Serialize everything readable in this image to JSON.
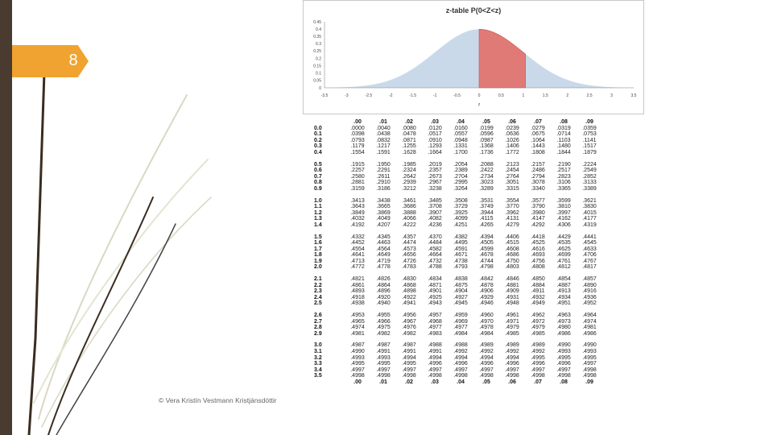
{
  "slide": {
    "number": "8"
  },
  "footer": {
    "text": "© Vera Kristín Vestmann Kristjánsdóttir"
  },
  "chart_data": {
    "type": "area",
    "title": "z-table P(0<Z<z)",
    "xlabel": "z",
    "ylabel": "",
    "xlim": [
      -3.5,
      3.5
    ],
    "ylim": [
      0,
      0.45
    ],
    "x_ticks": [
      "-3.5",
      "-3",
      "-2.5",
      "-2",
      "-1.5",
      "-1",
      "-0.5",
      "0",
      "0.5",
      "1",
      "1.5",
      "2",
      "2.5",
      "3",
      "3.5"
    ],
    "y_ticks": [
      "0",
      "0.05",
      "0.1",
      "0.15",
      "0.2",
      "0.25",
      "0.3",
      "0.35",
      "0.4",
      "0.45"
    ],
    "series": [
      {
        "function": "standard normal density",
        "mean": 0,
        "sd": 1,
        "color": "#c9d9ea",
        "range": [
          -3.5,
          3.5
        ]
      },
      {
        "function": "standard normal density",
        "mean": 0,
        "sd": 1,
        "color": "#e07a76",
        "range": [
          0,
          1.05
        ]
      }
    ]
  },
  "z_table": {
    "columns": [
      ".00",
      ".01",
      ".02",
      ".03",
      ".04",
      ".05",
      ".06",
      ".07",
      ".08",
      ".09"
    ],
    "footer_columns": [
      ".00",
      ".01",
      ".02",
      ".03",
      ".04",
      ".05",
      ".06",
      ".07",
      ".08",
      ".09"
    ],
    "groups": [
      {
        "rows": [
          {
            "z": "0.0",
            "values": [
              ".0000",
              ".0040",
              ".0080",
              ".0120",
              ".0160",
              ".0199",
              ".0239",
              ".0279",
              ".0319",
              ".0359"
            ]
          },
          {
            "z": "0.1",
            "values": [
              ".0398",
              ".0438",
              ".0478",
              ".0517",
              ".0557",
              ".0596",
              ".0636",
              ".0675",
              ".0714",
              ".0753"
            ]
          },
          {
            "z": "0.2",
            "values": [
              ".0793",
              ".0832",
              ".0871",
              ".0910",
              ".0948",
              ".0987",
              ".1026",
              ".1064",
              ".1103",
              ".1141"
            ]
          },
          {
            "z": "0.3",
            "values": [
              ".1179",
              ".1217",
              ".1255",
              ".1293",
              ".1331",
              ".1368",
              ".1406",
              ".1443",
              ".1480",
              ".1517"
            ]
          },
          {
            "z": "0.4",
            "values": [
              ".1554",
              ".1591",
              ".1628",
              ".1664",
              ".1700",
              ".1736",
              ".1772",
              ".1808",
              ".1844",
              ".1879"
            ]
          }
        ]
      },
      {
        "rows": [
          {
            "z": "0.5",
            "values": [
              ".1915",
              ".1950",
              ".1985",
              ".2019",
              ".2054",
              ".2088",
              ".2123",
              ".2157",
              ".2190",
              ".2224"
            ]
          },
          {
            "z": "0.6",
            "values": [
              ".2257",
              ".2291",
              ".2324",
              ".2357",
              ".2389",
              ".2422",
              ".2454",
              ".2486",
              ".2517",
              ".2549"
            ]
          },
          {
            "z": "0.7",
            "values": [
              ".2580",
              ".2611",
              ".2642",
              ".2673",
              ".2704",
              ".2734",
              ".2764",
              ".2794",
              ".2823",
              ".2852"
            ]
          },
          {
            "z": "0.8",
            "values": [
              ".2881",
              ".2910",
              ".2939",
              ".2967",
              ".2995",
              ".3023",
              ".3051",
              ".3078",
              ".3106",
              ".3133"
            ]
          },
          {
            "z": "0.9",
            "values": [
              ".3159",
              ".3186",
              ".3212",
              ".3238",
              ".3264",
              ".3289",
              ".3315",
              ".3340",
              ".3365",
              ".3389"
            ]
          }
        ]
      },
      {
        "rows": [
          {
            "z": "1.0",
            "values": [
              ".3413",
              ".3438",
              ".3461",
              ".3485",
              ".3508",
              ".3531",
              ".3554",
              ".3577",
              ".3599",
              ".3621"
            ]
          },
          {
            "z": "1.1",
            "values": [
              ".3643",
              ".3665",
              ".3686",
              ".3708",
              ".3729",
              ".3749",
              ".3770",
              ".3790",
              ".3810",
              ".3830"
            ]
          },
          {
            "z": "1.2",
            "values": [
              ".3849",
              ".3869",
              ".3888",
              ".3907",
              ".3925",
              ".3944",
              ".3962",
              ".3980",
              ".3997",
              ".4015"
            ]
          },
          {
            "z": "1.3",
            "values": [
              ".4032",
              ".4049",
              ".4066",
              ".4082",
              ".4099",
              ".4115",
              ".4131",
              ".4147",
              ".4162",
              ".4177"
            ]
          },
          {
            "z": "1.4",
            "values": [
              ".4192",
              ".4207",
              ".4222",
              ".4236",
              ".4251",
              ".4265",
              ".4279",
              ".4292",
              ".4306",
              ".4319"
            ]
          }
        ]
      },
      {
        "rows": [
          {
            "z": "1.5",
            "values": [
              ".4332",
              ".4345",
              ".4357",
              ".4370",
              ".4382",
              ".4394",
              ".4406",
              ".4418",
              ".4429",
              ".4441"
            ]
          },
          {
            "z": "1.6",
            "values": [
              ".4452",
              ".4463",
              ".4474",
              ".4484",
              ".4495",
              ".4505",
              ".4515",
              ".4525",
              ".4535",
              ".4545"
            ]
          },
          {
            "z": "1.7",
            "values": [
              ".4554",
              ".4564",
              ".4573",
              ".4582",
              ".4591",
              ".4599",
              ".4608",
              ".4616",
              ".4625",
              ".4633"
            ]
          },
          {
            "z": "1.8",
            "values": [
              ".4641",
              ".4649",
              ".4656",
              ".4664",
              ".4671",
              ".4678",
              ".4686",
              ".4693",
              ".4699",
              ".4706"
            ]
          },
          {
            "z": "1.9",
            "values": [
              ".4713",
              ".4719",
              ".4726",
              ".4732",
              ".4738",
              ".4744",
              ".4750",
              ".4756",
              ".4761",
              ".4767"
            ]
          },
          {
            "z": "2.0",
            "values": [
              ".4772",
              ".4778",
              ".4783",
              ".4788",
              ".4793",
              ".4798",
              ".4803",
              ".4808",
              ".4812",
              ".4817"
            ]
          }
        ]
      },
      {
        "rows": [
          {
            "z": "2.1",
            "values": [
              ".4821",
              ".4826",
              ".4830",
              ".4834",
              ".4838",
              ".4842",
              ".4846",
              ".4850",
              ".4854",
              ".4857"
            ]
          },
          {
            "z": "2.2",
            "values": [
              ".4861",
              ".4864",
              ".4868",
              ".4871",
              ".4875",
              ".4878",
              ".4881",
              ".4884",
              ".4887",
              ".4890"
            ]
          },
          {
            "z": "2.3",
            "values": [
              ".4893",
              ".4896",
              ".4898",
              ".4901",
              ".4904",
              ".4906",
              ".4909",
              ".4911",
              ".4913",
              ".4916"
            ]
          },
          {
            "z": "2.4",
            "values": [
              ".4918",
              ".4920",
              ".4922",
              ".4925",
              ".4927",
              ".4929",
              ".4931",
              ".4932",
              ".4934",
              ".4936"
            ]
          },
          {
            "z": "2.5",
            "values": [
              ".4938",
              ".4940",
              ".4941",
              ".4943",
              ".4945",
              ".4946",
              ".4948",
              ".4949",
              ".4951",
              ".4952"
            ]
          }
        ]
      },
      {
        "rows": [
          {
            "z": "2.6",
            "values": [
              ".4953",
              ".4955",
              ".4956",
              ".4957",
              ".4959",
              ".4960",
              ".4961",
              ".4962",
              ".4963",
              ".4964"
            ]
          },
          {
            "z": "2.7",
            "values": [
              ".4965",
              ".4966",
              ".4967",
              ".4968",
              ".4969",
              ".4970",
              ".4971",
              ".4972",
              ".4973",
              ".4974"
            ]
          },
          {
            "z": "2.8",
            "values": [
              ".4974",
              ".4975",
              ".4976",
              ".4977",
              ".4977",
              ".4978",
              ".4979",
              ".4979",
              ".4980",
              ".4981"
            ]
          },
          {
            "z": "2.9",
            "values": [
              ".4981",
              ".4982",
              ".4982",
              ".4983",
              ".4984",
              ".4984",
              ".4985",
              ".4985",
              ".4986",
              ".4986"
            ]
          }
        ]
      },
      {
        "rows": [
          {
            "z": "3.0",
            "values": [
              ".4987",
              ".4987",
              ".4987",
              ".4988",
              ".4988",
              ".4989",
              ".4989",
              ".4989",
              ".4990",
              ".4990"
            ]
          },
          {
            "z": "3.1",
            "values": [
              ".4990",
              ".4991",
              ".4991",
              ".4991",
              ".4992",
              ".4992",
              ".4992",
              ".4992",
              ".4993",
              ".4993"
            ]
          },
          {
            "z": "3.2",
            "values": [
              ".4993",
              ".4993",
              ".4994",
              ".4994",
              ".4994",
              ".4994",
              ".4994",
              ".4995",
              ".4995",
              ".4995"
            ]
          },
          {
            "z": "3.3",
            "values": [
              ".4995",
              ".4995",
              ".4995",
              ".4996",
              ".4996",
              ".4996",
              ".4996",
              ".4996",
              ".4996",
              ".4997"
            ]
          },
          {
            "z": "3.4",
            "values": [
              ".4997",
              ".4997",
              ".4997",
              ".4997",
              ".4997",
              ".4997",
              ".4997",
              ".4997",
              ".4997",
              ".4998"
            ]
          },
          {
            "z": "3.5",
            "values": [
              ".4998",
              ".4998",
              ".4998",
              ".4998",
              ".4998",
              ".4998",
              ".4998",
              ".4998",
              ".4998",
              ".4998"
            ]
          }
        ]
      }
    ]
  }
}
